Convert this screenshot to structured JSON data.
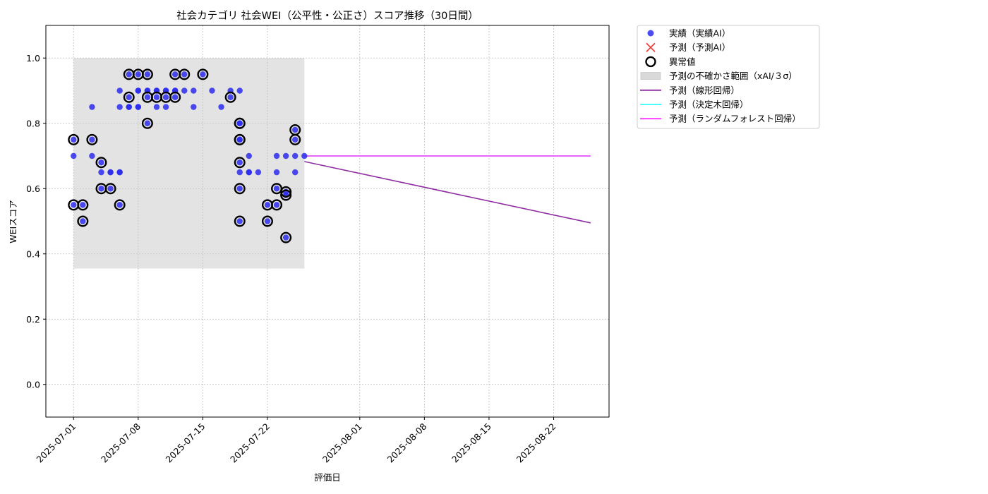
{
  "chart_data": {
    "type": "scatter",
    "title": "社会カテゴリ 社会WEI（公平性・公正さ）スコア推移（30日間）",
    "xlabel": "評価日",
    "ylabel": "WEIスコア",
    "x_axis_type": "date",
    "xlim": [
      "2025-06-28",
      "2025-08-28"
    ],
    "ylim": [
      -0.1,
      1.1
    ],
    "x_ticks": [
      "2025-07-01",
      "2025-07-08",
      "2025-07-15",
      "2025-07-22",
      "2025-08-01",
      "2025-08-08",
      "2025-08-15",
      "2025-08-22"
    ],
    "y_ticks": [
      "0.0",
      "0.2",
      "0.4",
      "0.6",
      "0.8",
      "1.0"
    ],
    "grid": true,
    "legend_position": "outside-upper-right",
    "uncertainty_band": {
      "x_start": "2025-07-01",
      "x_end": "2025-07-26",
      "y_low": 0.355,
      "y_high": 1.0,
      "color": "#c8c8c8"
    },
    "legend": [
      {
        "label": "実績（実績AI）",
        "kind": "dot",
        "color": "#2b2bee"
      },
      {
        "label": "予測（予測AI）",
        "kind": "cross",
        "color": "#ee4444"
      },
      {
        "label": "異常値",
        "kind": "ring",
        "color": "#000000"
      },
      {
        "label": "予測の不確かさ範囲（xAI/３σ）",
        "kind": "rect",
        "color": "#d9d9d9"
      },
      {
        "label": "予測（線形回帰）",
        "kind": "line",
        "color": "#8e2ea0"
      },
      {
        "label": "予測（決定木回帰）",
        "kind": "line",
        "color": "#33ffff"
      },
      {
        "label": "予測（ランダムフォレスト回帰）",
        "kind": "line",
        "color": "#ff33ff"
      }
    ],
    "series": [
      {
        "name": "実績（実績AI）",
        "kind": "scatter",
        "color": "#2b2bee",
        "points": [
          {
            "x": "2025-07-01",
            "y": 0.55
          },
          {
            "x": "2025-07-01",
            "y": 0.7
          },
          {
            "x": "2025-07-01",
            "y": 0.75
          },
          {
            "x": "2025-07-02",
            "y": 0.55
          },
          {
            "x": "2025-07-02",
            "y": 0.5
          },
          {
            "x": "2025-07-03",
            "y": 0.75
          },
          {
            "x": "2025-07-03",
            "y": 0.85
          },
          {
            "x": "2025-07-03",
            "y": 0.7
          },
          {
            "x": "2025-07-04",
            "y": 0.6
          },
          {
            "x": "2025-07-04",
            "y": 0.68
          },
          {
            "x": "2025-07-04",
            "y": 0.65
          },
          {
            "x": "2025-07-05",
            "y": 0.65
          },
          {
            "x": "2025-07-05",
            "y": 0.6
          },
          {
            "x": "2025-07-05",
            "y": 0.65
          },
          {
            "x": "2025-07-06",
            "y": 0.65
          },
          {
            "x": "2025-07-06",
            "y": 0.55
          },
          {
            "x": "2025-07-06",
            "y": 0.65
          },
          {
            "x": "2025-07-06",
            "y": 0.9
          },
          {
            "x": "2025-07-06",
            "y": 0.85
          },
          {
            "x": "2025-07-07",
            "y": 0.95
          },
          {
            "x": "2025-07-07",
            "y": 0.85
          },
          {
            "x": "2025-07-07",
            "y": 0.85
          },
          {
            "x": "2025-07-07",
            "y": 0.88
          },
          {
            "x": "2025-07-08",
            "y": 0.85
          },
          {
            "x": "2025-07-08",
            "y": 0.9
          },
          {
            "x": "2025-07-08",
            "y": 0.85
          },
          {
            "x": "2025-07-08",
            "y": 0.95
          },
          {
            "x": "2025-07-08",
            "y": 0.9
          },
          {
            "x": "2025-07-09",
            "y": 0.95
          },
          {
            "x": "2025-07-09",
            "y": 0.9
          },
          {
            "x": "2025-07-09",
            "y": 0.9
          },
          {
            "x": "2025-07-09",
            "y": 0.8
          },
          {
            "x": "2025-07-09",
            "y": 0.88
          },
          {
            "x": "2025-07-10",
            "y": 0.85
          },
          {
            "x": "2025-07-10",
            "y": 0.9
          },
          {
            "x": "2025-07-10",
            "y": 0.88
          },
          {
            "x": "2025-07-10",
            "y": 0.9
          },
          {
            "x": "2025-07-11",
            "y": 0.9
          },
          {
            "x": "2025-07-11",
            "y": 0.88
          },
          {
            "x": "2025-07-11",
            "y": 0.85
          },
          {
            "x": "2025-07-11",
            "y": 0.9
          },
          {
            "x": "2025-07-12",
            "y": 0.88
          },
          {
            "x": "2025-07-12",
            "y": 0.9
          },
          {
            "x": "2025-07-12",
            "y": 0.9
          },
          {
            "x": "2025-07-12",
            "y": 0.95
          },
          {
            "x": "2025-07-13",
            "y": 0.95
          },
          {
            "x": "2025-07-13",
            "y": 0.9
          },
          {
            "x": "2025-07-14",
            "y": 0.9
          },
          {
            "x": "2025-07-14",
            "y": 0.85
          },
          {
            "x": "2025-07-15",
            "y": 0.95
          },
          {
            "x": "2025-07-16",
            "y": 0.9
          },
          {
            "x": "2025-07-17",
            "y": 0.85
          },
          {
            "x": "2025-07-18",
            "y": 0.88
          },
          {
            "x": "2025-07-18",
            "y": 0.9
          },
          {
            "x": "2025-07-19",
            "y": 0.9
          },
          {
            "x": "2025-07-19",
            "y": 0.8
          },
          {
            "x": "2025-07-19",
            "y": 0.75
          },
          {
            "x": "2025-07-19",
            "y": 0.68
          },
          {
            "x": "2025-07-19",
            "y": 0.65
          },
          {
            "x": "2025-07-19",
            "y": 0.6
          },
          {
            "x": "2025-07-19",
            "y": 0.5
          },
          {
            "x": "2025-07-19",
            "y": 0.8
          },
          {
            "x": "2025-07-19",
            "y": 0.75
          },
          {
            "x": "2025-07-20",
            "y": 0.65
          },
          {
            "x": "2025-07-20",
            "y": 0.7
          },
          {
            "x": "2025-07-20",
            "y": 0.65
          },
          {
            "x": "2025-07-21",
            "y": 0.65
          },
          {
            "x": "2025-07-22",
            "y": 0.55
          },
          {
            "x": "2025-07-22",
            "y": 0.5
          },
          {
            "x": "2025-07-23",
            "y": 0.7
          },
          {
            "x": "2025-07-23",
            "y": 0.65
          },
          {
            "x": "2025-07-23",
            "y": 0.6
          },
          {
            "x": "2025-07-23",
            "y": 0.55
          },
          {
            "x": "2025-07-24",
            "y": 0.7
          },
          {
            "x": "2025-07-24",
            "y": 0.58
          },
          {
            "x": "2025-07-24",
            "y": 0.59
          },
          {
            "x": "2025-07-24",
            "y": 0.45
          },
          {
            "x": "2025-07-25",
            "y": 0.65
          },
          {
            "x": "2025-07-25",
            "y": 0.7
          },
          {
            "x": "2025-07-25",
            "y": 0.75
          },
          {
            "x": "2025-07-25",
            "y": 0.78
          },
          {
            "x": "2025-07-26",
            "y": 0.7
          }
        ]
      },
      {
        "name": "異常値",
        "kind": "ring",
        "color": "#000000",
        "points": [
          {
            "x": "2025-07-01",
            "y": 0.55
          },
          {
            "x": "2025-07-01",
            "y": 0.75
          },
          {
            "x": "2025-07-02",
            "y": 0.55
          },
          {
            "x": "2025-07-02",
            "y": 0.5
          },
          {
            "x": "2025-07-03",
            "y": 0.75
          },
          {
            "x": "2025-07-04",
            "y": 0.6
          },
          {
            "x": "2025-07-04",
            "y": 0.68
          },
          {
            "x": "2025-07-05",
            "y": 0.6
          },
          {
            "x": "2025-07-06",
            "y": 0.55
          },
          {
            "x": "2025-07-07",
            "y": 0.95
          },
          {
            "x": "2025-07-07",
            "y": 0.88
          },
          {
            "x": "2025-07-08",
            "y": 0.95
          },
          {
            "x": "2025-07-09",
            "y": 0.95
          },
          {
            "x": "2025-07-09",
            "y": 0.88
          },
          {
            "x": "2025-07-09",
            "y": 0.8
          },
          {
            "x": "2025-07-10",
            "y": 0.88
          },
          {
            "x": "2025-07-11",
            "y": 0.88
          },
          {
            "x": "2025-07-12",
            "y": 0.88
          },
          {
            "x": "2025-07-12",
            "y": 0.95
          },
          {
            "x": "2025-07-13",
            "y": 0.95
          },
          {
            "x": "2025-07-15",
            "y": 0.95
          },
          {
            "x": "2025-07-18",
            "y": 0.88
          },
          {
            "x": "2025-07-19",
            "y": 0.8
          },
          {
            "x": "2025-07-19",
            "y": 0.75
          },
          {
            "x": "2025-07-19",
            "y": 0.68
          },
          {
            "x": "2025-07-19",
            "y": 0.6
          },
          {
            "x": "2025-07-19",
            "y": 0.5
          },
          {
            "x": "2025-07-19",
            "y": 0.8
          },
          {
            "x": "2025-07-19",
            "y": 0.75
          },
          {
            "x": "2025-07-22",
            "y": 0.55
          },
          {
            "x": "2025-07-22",
            "y": 0.5
          },
          {
            "x": "2025-07-23",
            "y": 0.6
          },
          {
            "x": "2025-07-23",
            "y": 0.55
          },
          {
            "x": "2025-07-24",
            "y": 0.58
          },
          {
            "x": "2025-07-24",
            "y": 0.59
          },
          {
            "x": "2025-07-24",
            "y": 0.45
          },
          {
            "x": "2025-07-25",
            "y": 0.75
          },
          {
            "x": "2025-07-25",
            "y": 0.78
          }
        ]
      },
      {
        "name": "予測（線形回帰）",
        "kind": "line",
        "color": "#8e2ea0",
        "points": [
          {
            "x": "2025-07-26",
            "y": 0.683
          },
          {
            "x": "2025-08-26",
            "y": 0.495
          }
        ]
      },
      {
        "name": "予測（決定木回帰）",
        "kind": "line",
        "color": "#33ffff",
        "points": [
          {
            "x": "2025-07-26",
            "y": 0.7
          },
          {
            "x": "2025-08-26",
            "y": 0.7
          }
        ]
      },
      {
        "name": "予測（ランダムフォレスト回帰）",
        "kind": "line",
        "color": "#ff33ff",
        "points": [
          {
            "x": "2025-07-26",
            "y": 0.7
          },
          {
            "x": "2025-08-26",
            "y": 0.7
          }
        ]
      }
    ]
  }
}
